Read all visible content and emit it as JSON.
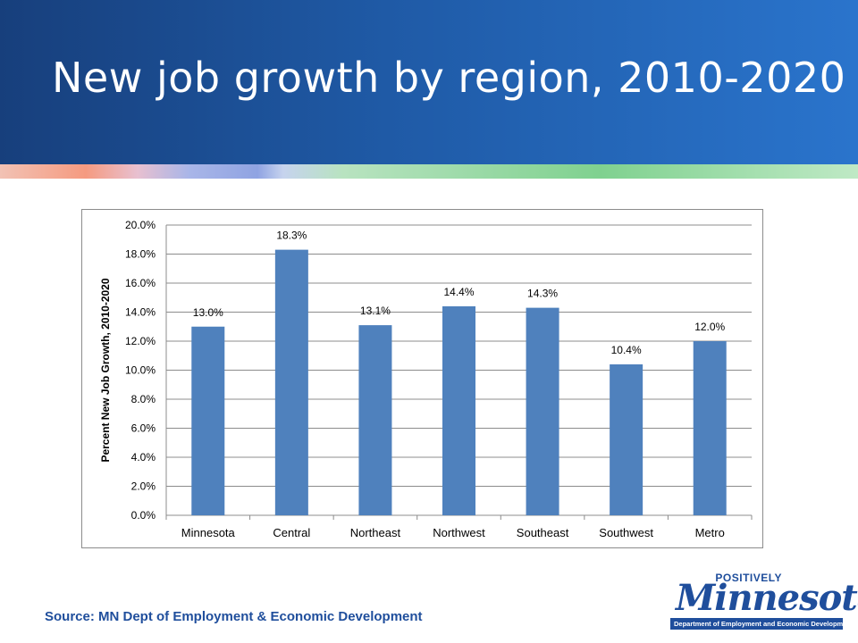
{
  "slide": {
    "title": "New job growth by region, 2010-2020",
    "source": "Source: MN Dept of Employment & Economic Development"
  },
  "logo": {
    "positively": "POSITIVELY",
    "wordmark": "Minnesota",
    "department": "Department of Employment and Economic Development"
  },
  "colors": {
    "header": "#1f5aa6",
    "bar": "#4f81bd",
    "source_text": "#1f4e9c"
  },
  "chart_data": {
    "type": "bar",
    "categories": [
      "Minnesota",
      "Central",
      "Northeast",
      "Northwest",
      "Southeast",
      "Southwest",
      "Metro"
    ],
    "values": [
      13.0,
      18.3,
      13.1,
      14.4,
      14.3,
      10.4,
      12.0
    ],
    "data_labels": [
      "13.0%",
      "18.3%",
      "13.1%",
      "14.4%",
      "14.3%",
      "10.4%",
      "12.0%"
    ],
    "ylabel": "Percent New Job Growth, 2010-2020",
    "xlabel": "",
    "ylim": [
      0,
      20
    ],
    "yticks": [
      "0.0%",
      "2.0%",
      "4.0%",
      "6.0%",
      "8.0%",
      "10.0%",
      "12.0%",
      "14.0%",
      "16.0%",
      "18.0%",
      "20.0%"
    ],
    "grid": true,
    "legend": "none"
  }
}
